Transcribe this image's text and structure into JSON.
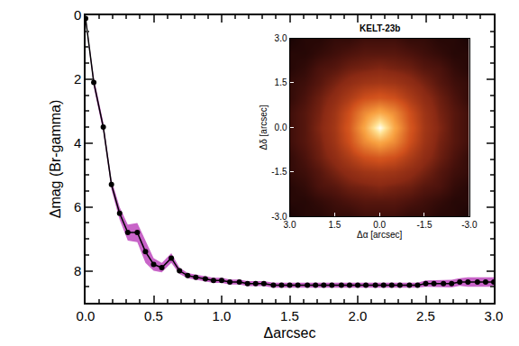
{
  "chart_data": [
    {
      "type": "line",
      "xlabel": "Δarcsec",
      "ylabel": "Δmag (Br-gamma)",
      "x": [
        0.0,
        0.06,
        0.13,
        0.19,
        0.25,
        0.31,
        0.38,
        0.44,
        0.5,
        0.56,
        0.63,
        0.69,
        0.75,
        0.81,
        0.88,
        0.94,
        1.0,
        1.06,
        1.13,
        1.19,
        1.25,
        1.31,
        1.38,
        1.44,
        1.5,
        1.56,
        1.63,
        1.69,
        1.75,
        1.81,
        1.88,
        1.94,
        2.0,
        2.06,
        2.13,
        2.19,
        2.25,
        2.31,
        2.38,
        2.44,
        2.5,
        2.56,
        2.63,
        2.69,
        2.75,
        2.81,
        2.88,
        2.94,
        3.0
      ],
      "values": [
        0.1,
        2.1,
        3.5,
        5.3,
        6.2,
        6.8,
        6.8,
        7.4,
        7.8,
        7.9,
        7.6,
        8.0,
        8.15,
        8.2,
        8.25,
        8.3,
        8.3,
        8.35,
        8.35,
        8.4,
        8.4,
        8.4,
        8.45,
        8.45,
        8.45,
        8.45,
        8.45,
        8.45,
        8.45,
        8.45,
        8.45,
        8.45,
        8.45,
        8.45,
        8.45,
        8.45,
        8.45,
        8.45,
        8.45,
        8.45,
        8.4,
        8.4,
        8.4,
        8.4,
        8.35,
        8.35,
        8.35,
        8.35,
        8.35
      ],
      "error": {
        "color": "#c864c8",
        "values": [
          0.05,
          0.15,
          0.15,
          0.15,
          0.2,
          0.25,
          0.3,
          0.35,
          0.2,
          0.15,
          0.15,
          0.1,
          0.08,
          0.08,
          0.08,
          0.08,
          0.08,
          0.08,
          0.08,
          0.08,
          0.08,
          0.08,
          0.08,
          0.08,
          0.08,
          0.08,
          0.08,
          0.08,
          0.08,
          0.08,
          0.08,
          0.08,
          0.08,
          0.08,
          0.08,
          0.08,
          0.08,
          0.08,
          0.08,
          0.08,
          0.1,
          0.1,
          0.12,
          0.12,
          0.12,
          0.15,
          0.15,
          0.15,
          0.15
        ]
      },
      "color": "#000000",
      "marker": "circle",
      "xlim": [
        0,
        3
      ],
      "ylim": [
        9,
        0
      ],
      "xticks": [
        {
          "value": 0,
          "label": "0.0"
        },
        {
          "value": 0.5,
          "label": "0.5"
        },
        {
          "value": 1,
          "label": "1.0"
        },
        {
          "value": 1.5,
          "label": "1.5"
        },
        {
          "value": 2,
          "label": "2.0"
        },
        {
          "value": 2.5,
          "label": "2.5"
        },
        {
          "value": 3,
          "label": "3.0"
        }
      ],
      "yticks": [
        0,
        2,
        4,
        6,
        8
      ]
    },
    {
      "type": "heatmap",
      "title": "KELT-23b",
      "xlabel": "Δα [arcsec]",
      "ylabel": "Δδ [arcsec]",
      "x": [
        -3,
        -2.5,
        -2,
        -1.5,
        -1,
        -0.5,
        0,
        0.5,
        1,
        1.5,
        2,
        2.5,
        3
      ],
      "y": [
        -3,
        -2.5,
        -2,
        -1.5,
        -1,
        -0.5,
        0,
        0.5,
        1,
        1.5,
        2,
        2.5,
        3
      ],
      "cells": [
        [
          3,
          4,
          4,
          5,
          5,
          6,
          6,
          6,
          5,
          5,
          4,
          4,
          3
        ],
        [
          4,
          4,
          5,
          6,
          7,
          8,
          8,
          8,
          7,
          6,
          5,
          4,
          4
        ],
        [
          4,
          5,
          7,
          8,
          10,
          11,
          12,
          11,
          10,
          8,
          7,
          5,
          4
        ],
        [
          5,
          6,
          8,
          11,
          14,
          17,
          18,
          17,
          14,
          11,
          8,
          6,
          5
        ],
        [
          5,
          7,
          10,
          14,
          20,
          27,
          30,
          27,
          20,
          14,
          10,
          7,
          5
        ],
        [
          6,
          8,
          11,
          17,
          27,
          45,
          55,
          45,
          27,
          17,
          11,
          8,
          6
        ],
        [
          6,
          8,
          12,
          18,
          30,
          55,
          100,
          55,
          30,
          18,
          12,
          8,
          6
        ],
        [
          6,
          8,
          11,
          17,
          27,
          45,
          55,
          45,
          27,
          17,
          11,
          8,
          6
        ],
        [
          5,
          7,
          10,
          14,
          20,
          27,
          30,
          27,
          20,
          14,
          10,
          7,
          5
        ],
        [
          5,
          6,
          8,
          11,
          14,
          17,
          18,
          17,
          14,
          11,
          8,
          6,
          5
        ],
        [
          4,
          5,
          7,
          8,
          10,
          11,
          12,
          11,
          10,
          8,
          7,
          5,
          4
        ],
        [
          4,
          4,
          5,
          6,
          7,
          8,
          8,
          8,
          7,
          6,
          5,
          4,
          4
        ],
        [
          3,
          4,
          4,
          5,
          5,
          6,
          6,
          6,
          5,
          5,
          4,
          4,
          3
        ]
      ],
      "xlim": [
        3,
        -3
      ],
      "ylim": [
        -3,
        3
      ],
      "xticks": [
        {
          "value": 3,
          "label": "3.0"
        },
        {
          "value": 1.5,
          "label": "1.5"
        },
        {
          "value": 0,
          "label": "0.0"
        },
        {
          "value": -1.5,
          "label": "-1.5"
        },
        {
          "value": -3,
          "label": "-3.0"
        }
      ],
      "yticks": [
        {
          "value": 3,
          "label": "3.0"
        },
        {
          "value": 1.5,
          "label": "1.5"
        },
        {
          "value": 0,
          "label": "0.0"
        },
        {
          "value": -1.5,
          "label": "-1.5"
        },
        {
          "value": -3,
          "label": "-3.0"
        }
      ]
    }
  ]
}
